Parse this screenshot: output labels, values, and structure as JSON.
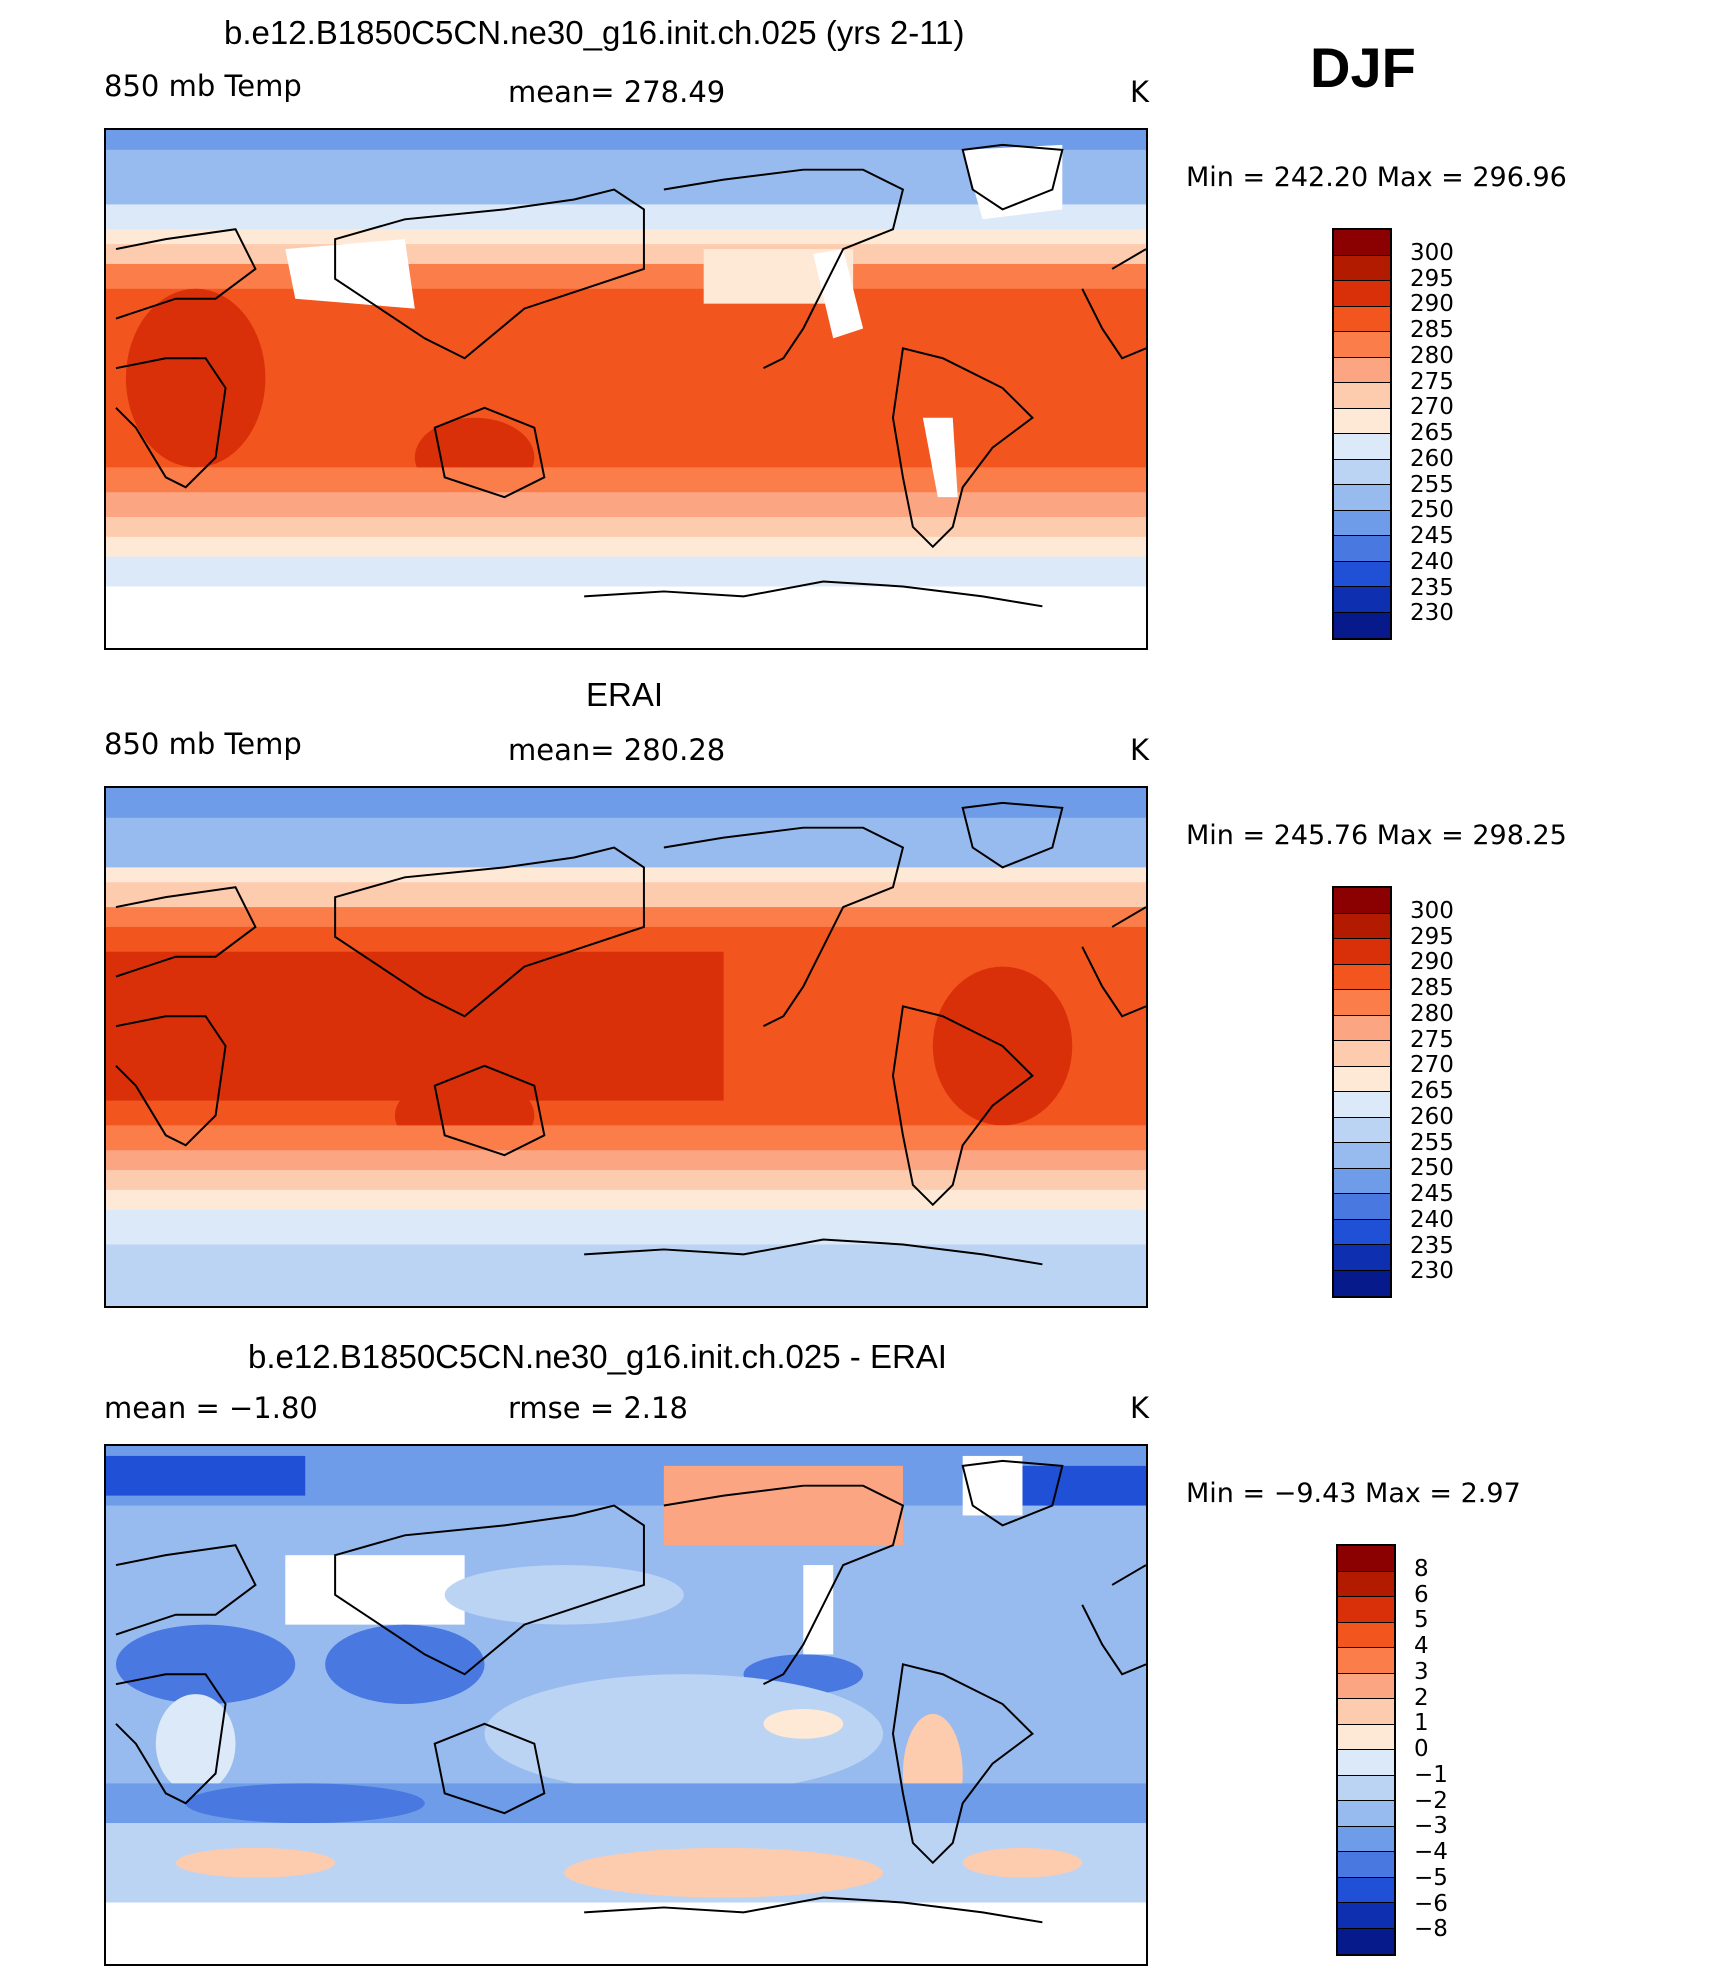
{
  "season": "DJF",
  "units": "K",
  "panels": [
    {
      "id": "model",
      "title": "b.e12.B1850C5CN.ne30_g16.init.ch.025 (yrs 2-11)",
      "left_label": "850 mb Temp",
      "center_label": "mean=  278.49",
      "minmax": "Min  =  242.20  Max  =  296.96",
      "colorbar_labels": [
        "300",
        "295",
        "290",
        "285",
        "280",
        "275",
        "270",
        "265",
        "260",
        "255",
        "250",
        "245",
        "240",
        "235",
        "230"
      ],
      "colorbar_colors": [
        "#8b0000",
        "#b21b00",
        "#d9300a",
        "#f2551e",
        "#fb7d4a",
        "#fca582",
        "#fdcbae",
        "#fee9d6",
        "#dce9f8",
        "#bcd4f4",
        "#98bbef",
        "#6e9ce8",
        "#4878e0",
        "#2050d6",
        "#0d2fb0",
        "#061a8c"
      ]
    },
    {
      "id": "obs",
      "title": "ERAI",
      "left_label": "850 mb Temp",
      "center_label": "mean=  280.28",
      "minmax": "Min  =  245.76  Max  =  298.25",
      "colorbar_labels": [
        "300",
        "295",
        "290",
        "285",
        "280",
        "275",
        "270",
        "265",
        "260",
        "255",
        "250",
        "245",
        "240",
        "235",
        "230"
      ],
      "colorbar_colors": [
        "#8b0000",
        "#b21b00",
        "#d9300a",
        "#f2551e",
        "#fb7d4a",
        "#fca582",
        "#fdcbae",
        "#fee9d6",
        "#dce9f8",
        "#bcd4f4",
        "#98bbef",
        "#6e9ce8",
        "#4878e0",
        "#2050d6",
        "#0d2fb0",
        "#061a8c"
      ]
    },
    {
      "id": "diff",
      "title": "b.e12.B1850C5CN.ne30_g16.init.ch.025 - ERAI",
      "left_label": "mean  =    −1.80",
      "center_label": "rmse  =     2.18",
      "minmax": "Min  =    −9.43  Max  =     2.97",
      "colorbar_labels": [
        "8",
        "6",
        "5",
        "4",
        "3",
        "2",
        "1",
        "0",
        "−1",
        "−2",
        "−3",
        "−4",
        "−5",
        "−6",
        "−8"
      ],
      "colorbar_colors": [
        "#8b0000",
        "#b21b00",
        "#d9300a",
        "#f2551e",
        "#fb7d4a",
        "#fca582",
        "#fdcbae",
        "#fee9d6",
        "#dce9f8",
        "#bcd4f4",
        "#98bbef",
        "#6e9ce8",
        "#4878e0",
        "#2050d6",
        "#0d2fb0",
        "#061a8c"
      ]
    }
  ]
}
